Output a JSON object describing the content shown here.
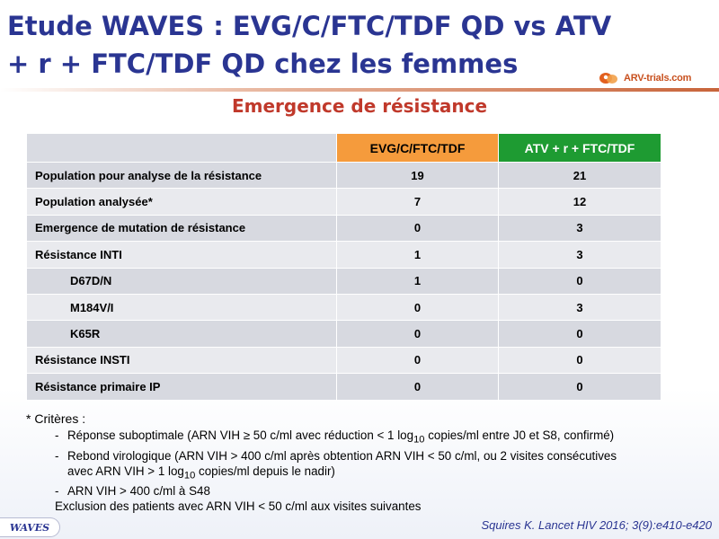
{
  "slide": {
    "title": "Etude WAVES : EVG/C/FTC/TDF QD vs ATV + r + FTC/TDF QD chez les femmes",
    "subtitle": "Emergence de résistance",
    "logo_text": "ARV-trials.com",
    "badge": "WAVES",
    "reference": "Squires K. Lancet HIV 2016; 3(9):e410-e420",
    "colors": {
      "title": "#2a3592",
      "subtitle": "#c0392b",
      "col_evg": "#f59b3c",
      "col_atv": "#1e9b32",
      "row_odd": "#d7d9e0",
      "row_even": "#e9eaee"
    }
  },
  "table": {
    "headers": [
      "",
      "EVG/C/FTC/TDF",
      "ATV + r + FTC/TDF"
    ],
    "rows": [
      {
        "label": "Population pour analyse de la résistance",
        "evg": "19",
        "atv": "21"
      },
      {
        "label": "Population analysée*",
        "evg": "7",
        "atv": "12"
      },
      {
        "label": "Emergence de mutation de résistance",
        "evg": "0",
        "atv": "3"
      },
      {
        "label": "Résistance INTI",
        "evg": "1",
        "atv": "3"
      },
      {
        "label": "D67D/N",
        "evg": "1",
        "atv": "0"
      },
      {
        "label": "M184V/I",
        "evg": "0",
        "atv": "3"
      },
      {
        "label": "K65R",
        "evg": "0",
        "atv": "0"
      },
      {
        "label": "Résistance INSTI",
        "evg": "0",
        "atv": "0"
      },
      {
        "label": "Résistance primaire IP",
        "evg": "0",
        "atv": "0"
      }
    ]
  },
  "notes": {
    "heading": "* Critères :",
    "bullet1_pre": "Réponse suboptimale (ARN VIH ≥ 50 c/ml avec réduction < 1 log",
    "bullet1_sub": "10",
    "bullet1_post": " copies/ml entre J0 et S8, confirmé)",
    "bullet2_line1": "Rebond virologique (ARN VIH > 400 c/ml après obtention ARN VIH < 50 c/ml, ou 2 visites consécutives",
    "bullet2_line2_pre": "avec ARN VIH > 1 log",
    "bullet2_line2_sub": "10",
    "bullet2_line2_post": " copies/ml depuis le nadir)",
    "bullet3": "ARN VIH > 400 c/ml à S48",
    "exclusion": "Exclusion des patients avec ARN VIH < 50 c/ml aux visites suivantes",
    "dash": "-"
  }
}
